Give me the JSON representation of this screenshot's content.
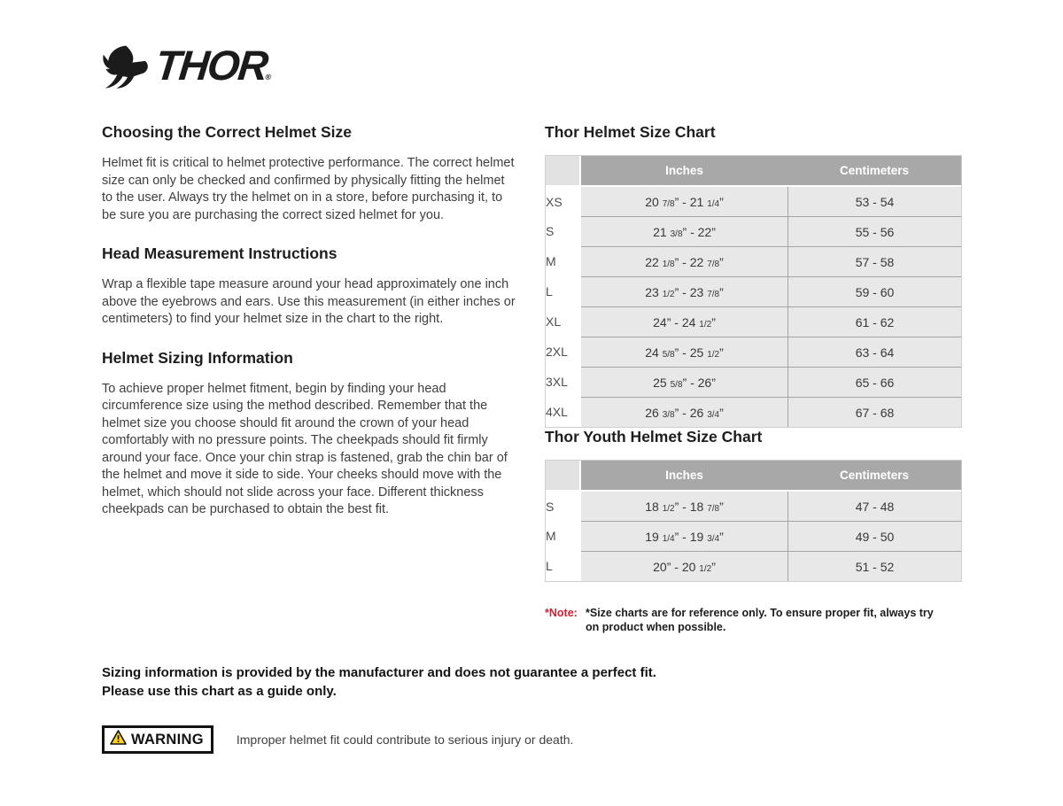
{
  "logo": {
    "brand": "THOR",
    "reg_mark": "®",
    "icon": "thor-goat-head-icon"
  },
  "left_column": {
    "sections": [
      {
        "heading": "Choosing the Correct Helmet Size",
        "body": "Helmet fit is critical to helmet protective performance. The correct helmet size can only be checked and confirmed by physically fitting the helmet to the user. Always try the helmet on in a store, before purchasing it, to be sure you are purchasing the correct sized helmet for you."
      },
      {
        "heading": "Head Measurement Instructions",
        "body": "Wrap a flexible tape measure around your head approximately one inch above the eyebrows and ears. Use this measurement (in either inches or centimeters) to find your helmet size in the chart to the right."
      },
      {
        "heading": "Helmet Sizing Information",
        "body": "To achieve proper helmet fitment, begin by finding your head circumference size using the method described. Remember that the helmet size you choose should fit around the crown of your head comfortably with no pressure points. The cheekpads should fit firmly around your face. Once your chin strap is fastened, grab the chin bar of the helmet and move it side to side. Your cheeks should move with the helmet, which should not slide across your face. Different thickness cheekpads can be purchased to obtain the best fit."
      }
    ]
  },
  "adult_chart": {
    "title": "Thor Helmet Size Chart",
    "columns": [
      "Inches",
      "Centimeters"
    ],
    "rows": [
      {
        "size": "XS",
        "inches": "20 7/8” - 21 1/4”",
        "centimeters": "53 - 54"
      },
      {
        "size": "S",
        "inches": "21 3/8” - 22”",
        "centimeters": "55 - 56"
      },
      {
        "size": "M",
        "inches": "22 1/8” - 22 7/8”",
        "centimeters": "57 - 58"
      },
      {
        "size": "L",
        "inches": "23 1/2” - 23 7/8”",
        "centimeters": "59 - 60"
      },
      {
        "size": "XL",
        "inches": "24” - 24 1/2”",
        "centimeters": "61 - 62"
      },
      {
        "size": "2XL",
        "inches": "24 5/8” - 25 1/2”",
        "centimeters": "63 - 64"
      },
      {
        "size": "3XL",
        "inches": "25 5/8” - 26”",
        "centimeters": "65 - 66"
      },
      {
        "size": "4XL",
        "inches": "26 3/8” - 26 3/4”",
        "centimeters": "67 - 68"
      }
    ]
  },
  "youth_chart": {
    "title": "Thor Youth Helmet Size Chart",
    "columns": [
      "Inches",
      "Centimeters"
    ],
    "rows": [
      {
        "size": "S",
        "inches": "18 1/2” - 18 7/8”",
        "centimeters": "47 - 48"
      },
      {
        "size": "M",
        "inches": "19 1/4” - 19 3/4”",
        "centimeters": "49 - 50"
      },
      {
        "size": "L",
        "inches": "20” - 20 1/2”",
        "centimeters": "51 - 52"
      }
    ]
  },
  "note": {
    "label": "*Note:",
    "text": "*Size charts are for reference only. To ensure proper fit, always try on product when possible."
  },
  "footer": {
    "disclaimer_line1": "Sizing information is provided by the manufacturer and does not guarantee a perfect fit.",
    "disclaimer_line2": "Please use this chart as a guide only.",
    "warning_label": "WARNING",
    "warning_text": "Improper helmet fit could contribute to serious injury or death."
  },
  "colors": {
    "table_header_gray": "#a8a8a8",
    "table_row_gray": "#e8e8e8",
    "note_red": "#cc2233",
    "warning_yellow": "#ffd21e",
    "brand_black": "#1b1b1b"
  }
}
